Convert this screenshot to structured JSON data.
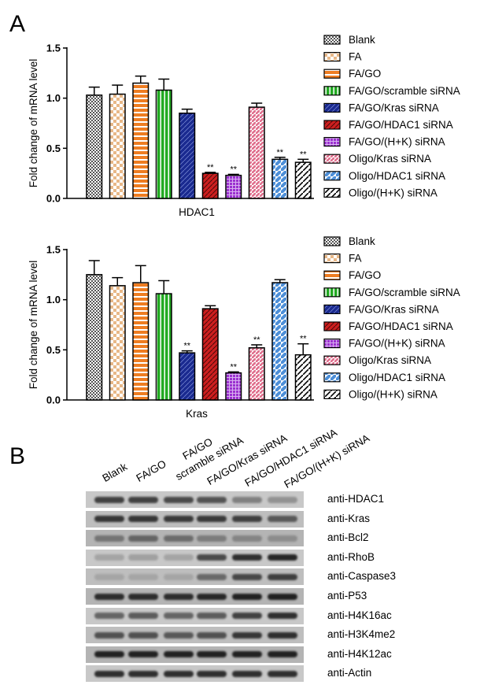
{
  "panel_labels": {
    "a": "A",
    "b": "B"
  },
  "legend_entries": [
    "Blank",
    "FA",
    "FA/GO",
    "FA/GO/scramble siRNA",
    "FA/GO/Kras siRNA",
    "FA/GO/HDAC1 siRNA",
    "FA/GO/(H+K) siRNA",
    "Oligo/Kras siRNA",
    "Oligo/HDAC1 siRNA",
    "Oligo/(H+K) siRNA"
  ],
  "colors": {
    "blank": "#777777",
    "fa": "#e8b888",
    "fago": "#ee7d22",
    "scramble": "#22aa22",
    "kras": "#1a2a90",
    "hdac1": "#cc1f1f",
    "hk": "#9b30d0",
    "oligo_kras": "#e0708e",
    "oligo_hdac1": "#4d8fd8",
    "oligo_hk": "#ffffff"
  },
  "chart_data": [
    {
      "type": "bar",
      "title": "",
      "xlabel": "HDAC1",
      "ylabel": "Fold change of mRNA level",
      "ylim": [
        0,
        1.5
      ],
      "yticks": [
        "0.0",
        "0.5",
        "1.0",
        "1.5"
      ],
      "categories": [
        "Blank",
        "FA",
        "FA/GO",
        "FA/GO/scramble siRNA",
        "FA/GO/Kras siRNA",
        "FA/GO/HDAC1 siRNA",
        "FA/GO/(H+K) siRNA",
        "Oligo/Kras siRNA",
        "Oligo/HDAC1 siRNA",
        "Oligo/(H+K) siRNA"
      ],
      "values": [
        1.03,
        1.04,
        1.15,
        1.08,
        0.85,
        0.25,
        0.23,
        0.91,
        0.39,
        0.36
      ],
      "errors": [
        0.08,
        0.09,
        0.07,
        0.11,
        0.04,
        0.01,
        0.01,
        0.04,
        0.02,
        0.03
      ],
      "annotations": [
        "",
        "",
        "",
        "",
        "",
        "**",
        "**",
        "",
        "**",
        "**"
      ],
      "legend": "right"
    },
    {
      "type": "bar",
      "title": "",
      "xlabel": "Kras",
      "ylabel": "Fold change of mRNA level",
      "ylim": [
        0,
        1.5
      ],
      "yticks": [
        "0.0",
        "0.5",
        "1.0",
        "1.5"
      ],
      "categories": [
        "Blank",
        "FA",
        "FA/GO",
        "FA/GO/scramble siRNA",
        "FA/GO/Kras siRNA",
        "FA/GO/HDAC1 siRNA",
        "FA/GO/(H+K) siRNA",
        "Oligo/Kras siRNA",
        "Oligo/HDAC1 siRNA",
        "Oligo/(H+K) siRNA"
      ],
      "values": [
        1.25,
        1.14,
        1.17,
        1.06,
        0.47,
        0.91,
        0.27,
        0.52,
        1.17,
        0.45
      ],
      "errors": [
        0.14,
        0.08,
        0.17,
        0.13,
        0.02,
        0.03,
        0.01,
        0.03,
        0.03,
        0.11
      ],
      "annotations": [
        "",
        "",
        "",
        "",
        "**",
        "",
        "**",
        "**",
        "",
        "**"
      ],
      "legend": "right"
    }
  ],
  "western_blot": {
    "lanes": [
      "Blank",
      "FA/GO",
      "FA/GO\nscramble siRNA",
      "FA/GO/Kras siRNA",
      "FA/GO/HDAC1 siRNA",
      "FA/GO/(H+K) siRNA"
    ],
    "lane_labels": {
      "l1": "Blank",
      "l2": "FA/GO",
      "l3a": "FA/GO",
      "l3b": "scramble siRNA",
      "l4": "FA/GO/Kras siRNA",
      "l5": "FA/GO/HDAC1 siRNA",
      "l6": "FA/GO/(H+K) siRNA"
    },
    "antibodies": [
      "anti-HDAC1",
      "anti-Kras",
      "anti-Bcl2",
      "anti-RhoB",
      "anti-Caspase3",
      "anti-P53",
      "anti-H4K16ac",
      "anti-H3K4me2",
      "anti-H4K12ac",
      "anti-Actin"
    ],
    "band_intensity": [
      [
        0.75,
        0.75,
        0.7,
        0.65,
        0.4,
        0.3
      ],
      [
        0.8,
        0.8,
        0.78,
        0.78,
        0.75,
        0.6
      ],
      [
        0.4,
        0.5,
        0.45,
        0.35,
        0.3,
        0.25
      ],
      [
        0.2,
        0.22,
        0.2,
        0.7,
        0.85,
        0.9
      ],
      [
        0.15,
        0.15,
        0.15,
        0.5,
        0.7,
        0.75
      ],
      [
        0.85,
        0.85,
        0.85,
        0.88,
        0.92,
        0.92
      ],
      [
        0.55,
        0.6,
        0.55,
        0.6,
        0.75,
        0.85
      ],
      [
        0.65,
        0.65,
        0.6,
        0.65,
        0.8,
        0.85
      ],
      [
        0.92,
        0.92,
        0.92,
        0.92,
        0.92,
        0.92
      ],
      [
        0.85,
        0.85,
        0.85,
        0.85,
        0.85,
        0.85
      ]
    ]
  }
}
